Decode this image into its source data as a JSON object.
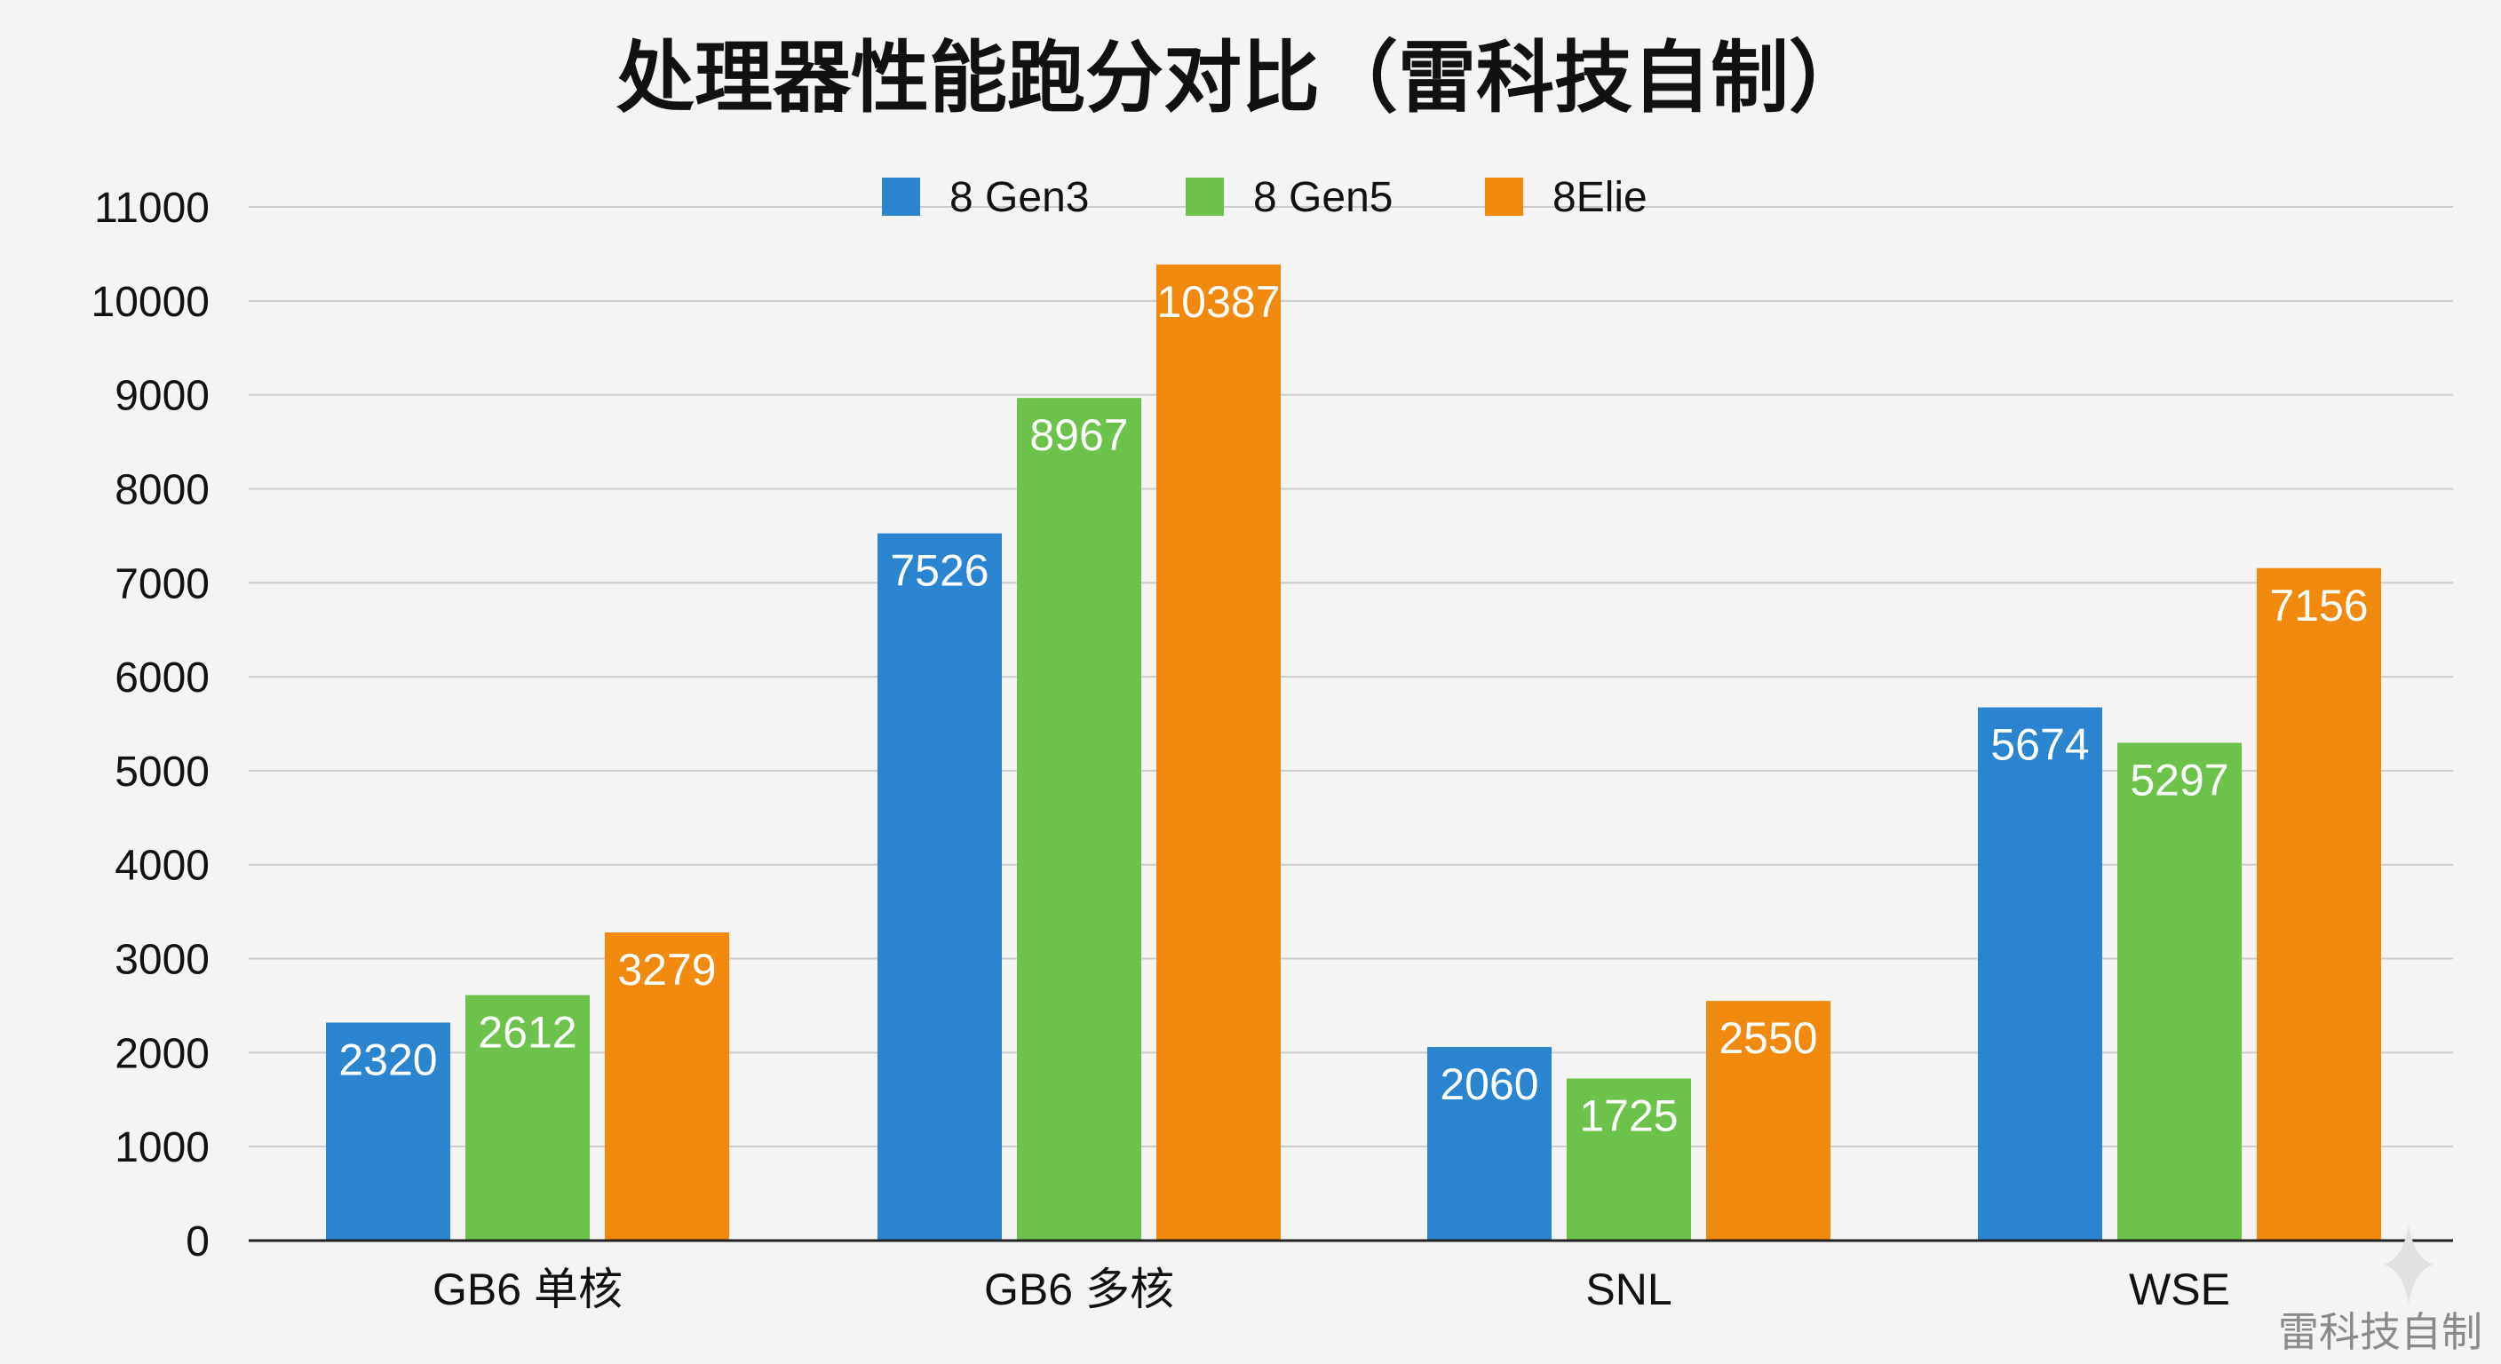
{
  "chart_data": {
    "type": "bar",
    "title": "处理器性能跑分对比（雷科技自制）",
    "categories": [
      "GB6 单核",
      "GB6 多核",
      "SNL",
      "WSE"
    ],
    "series": [
      {
        "name": "8 Gen3",
        "color": "#2b84cf",
        "values": [
          2320,
          7526,
          2060,
          5674
        ]
      },
      {
        "name": "8 Gen5",
        "color": "#6cc24a",
        "values": [
          2612,
          8967,
          1725,
          5297
        ]
      },
      {
        "name": "8Elie",
        "color": "#f0890e",
        "values": [
          3279,
          10387,
          2550,
          7156
        ]
      }
    ],
    "ylim": [
      0,
      11000
    ],
    "yticks": [
      0,
      1000,
      2000,
      3000,
      4000,
      5000,
      6000,
      7000,
      8000,
      9000,
      10000,
      11000
    ],
    "xlabel": "",
    "ylabel": "",
    "grid": true,
    "legend_position": "top-center",
    "data_labels": true
  },
  "watermark": {
    "text": "雷科技自制",
    "icon": "sparkle-icon"
  }
}
